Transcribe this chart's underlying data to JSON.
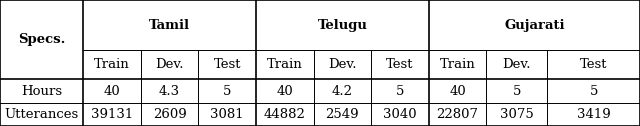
{
  "col_groups": [
    "Tamil",
    "Telugu",
    "Gujarati"
  ],
  "sub_cols": [
    "Train",
    "Dev.",
    "Test"
  ],
  "row_labels": [
    "Specs.",
    "Hours",
    "Utterances"
  ],
  "data": {
    "Hours": [
      "40",
      "4.3",
      "5",
      "40",
      "4.2",
      "5",
      "40",
      "5",
      "5"
    ],
    "Utterances": [
      "39131",
      "2609",
      "3081",
      "44882",
      "2549",
      "3040",
      "22807",
      "3075",
      "3419"
    ]
  },
  "font_size": 9.5,
  "bx": [
    0.0,
    0.13,
    0.22,
    0.31,
    0.4,
    0.49,
    0.58,
    0.67,
    0.76,
    0.855,
    1.0
  ],
  "by": [
    1.0,
    0.6,
    0.37,
    0.185,
    0.0
  ],
  "thick_lw": 1.2,
  "thin_lw": 0.7
}
